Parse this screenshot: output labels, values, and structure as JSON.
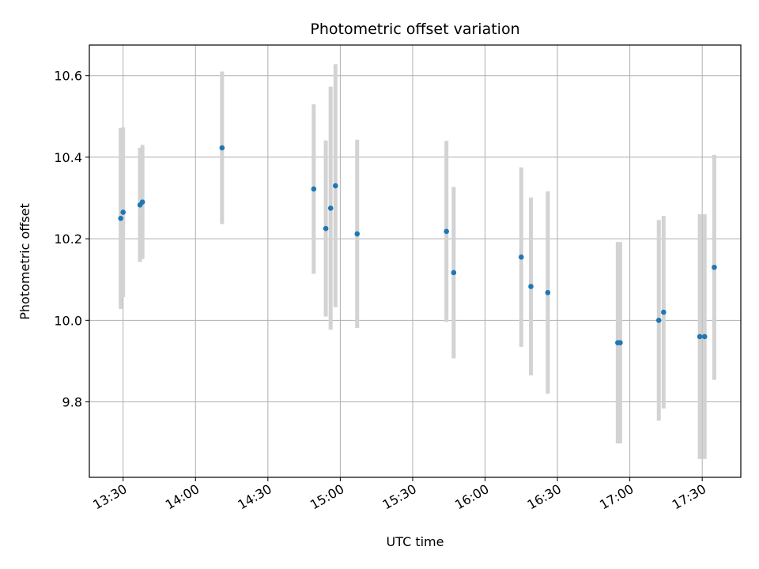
{
  "chart_data": {
    "type": "scatter",
    "title": "Photometric offset variation",
    "xlabel": "UTC time",
    "ylabel": "Photometric offset",
    "x_type": "time",
    "xlim": [
      "13:16",
      "17:46"
    ],
    "ylim": [
      9.615,
      10.675
    ],
    "x_ticks": [
      "13:30",
      "14:00",
      "14:30",
      "15:00",
      "15:30",
      "16:00",
      "16:30",
      "17:00",
      "17:30"
    ],
    "y_ticks": [
      9.8,
      10.0,
      10.2,
      10.4,
      10.6
    ],
    "y_tick_labels": [
      "9.8",
      "10.0",
      "10.2",
      "10.4",
      "10.6"
    ],
    "grid": true,
    "colors": {
      "point": "#1f77b4",
      "errorbar": "#d3d3d3",
      "grid": "#b0b0b0"
    },
    "points": [
      {
        "time": "13:29",
        "y": 10.25,
        "err": 0.222
      },
      {
        "time": "13:30",
        "y": 10.265,
        "err": 0.208
      },
      {
        "time": "13:37",
        "y": 10.283,
        "err": 0.14
      },
      {
        "time": "13:38",
        "y": 10.29,
        "err": 0.14
      },
      {
        "time": "14:11",
        "y": 10.423,
        "err": 0.187
      },
      {
        "time": "14:49",
        "y": 10.322,
        "err": 0.208
      },
      {
        "time": "14:54",
        "y": 10.225,
        "err": 0.216
      },
      {
        "time": "14:56",
        "y": 10.275,
        "err": 0.298
      },
      {
        "time": "14:58",
        "y": 10.33,
        "err": 0.298
      },
      {
        "time": "15:07",
        "y": 10.212,
        "err": 0.231
      },
      {
        "time": "15:44",
        "y": 10.218,
        "err": 0.222
      },
      {
        "time": "15:47",
        "y": 10.117,
        "err": 0.21
      },
      {
        "time": "16:15",
        "y": 10.155,
        "err": 0.22
      },
      {
        "time": "16:19",
        "y": 10.083,
        "err": 0.218
      },
      {
        "time": "16:26",
        "y": 10.068,
        "err": 0.248
      },
      {
        "time": "16:55",
        "y": 9.945,
        "err": 0.247
      },
      {
        "time": "16:56",
        "y": 9.945,
        "err": 0.247
      },
      {
        "time": "17:12",
        "y": 10.0,
        "err": 0.246
      },
      {
        "time": "17:14",
        "y": 10.02,
        "err": 0.236
      },
      {
        "time": "17:29",
        "y": 9.96,
        "err": 0.3
      },
      {
        "time": "17:31",
        "y": 9.96,
        "err": 0.3
      },
      {
        "time": "17:35",
        "y": 10.13,
        "err": 0.276
      }
    ]
  }
}
